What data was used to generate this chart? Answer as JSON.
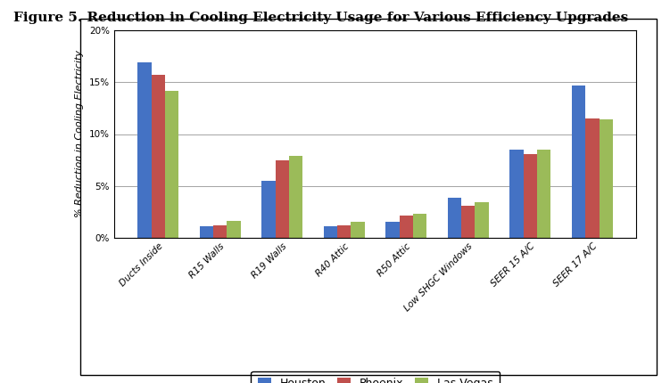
{
  "title": "Figure 5. Reduction in Cooling Electricity Usage for Various Efficiency Upgrades",
  "ylabel": "% Reduction in Cooling Electricity",
  "categories": [
    "Ducts Inside",
    "R15 Walls",
    "R19 Walls",
    "R40 Attic",
    "R50 Attic",
    "Low SHGC Windows",
    "SEER 15 A/C",
    "SEER 17 A/C"
  ],
  "series": {
    "Houston": [
      16.9,
      1.1,
      5.5,
      1.1,
      1.5,
      3.8,
      8.5,
      14.7
    ],
    "Phoenix": [
      15.7,
      1.2,
      7.5,
      1.2,
      2.1,
      3.1,
      8.1,
      11.5
    ],
    "Las Vegas": [
      14.2,
      1.6,
      7.9,
      1.5,
      2.3,
      3.4,
      8.5,
      11.4
    ]
  },
  "colors": {
    "Houston": "#4472C4",
    "Phoenix": "#C0504D",
    "Las Vegas": "#9BBB59"
  },
  "ylim": [
    0,
    20
  ],
  "yticks": [
    0,
    5,
    10,
    15,
    20
  ],
  "ytick_labels": [
    "0%",
    "5%",
    "10%",
    "15%",
    "20%"
  ],
  "bar_width": 0.22,
  "figsize": [
    7.51,
    4.3
  ],
  "dpi": 100,
  "title_fontsize": 11,
  "axis_label_fontsize": 8,
  "tick_fontsize": 7.5,
  "legend_fontsize": 9
}
